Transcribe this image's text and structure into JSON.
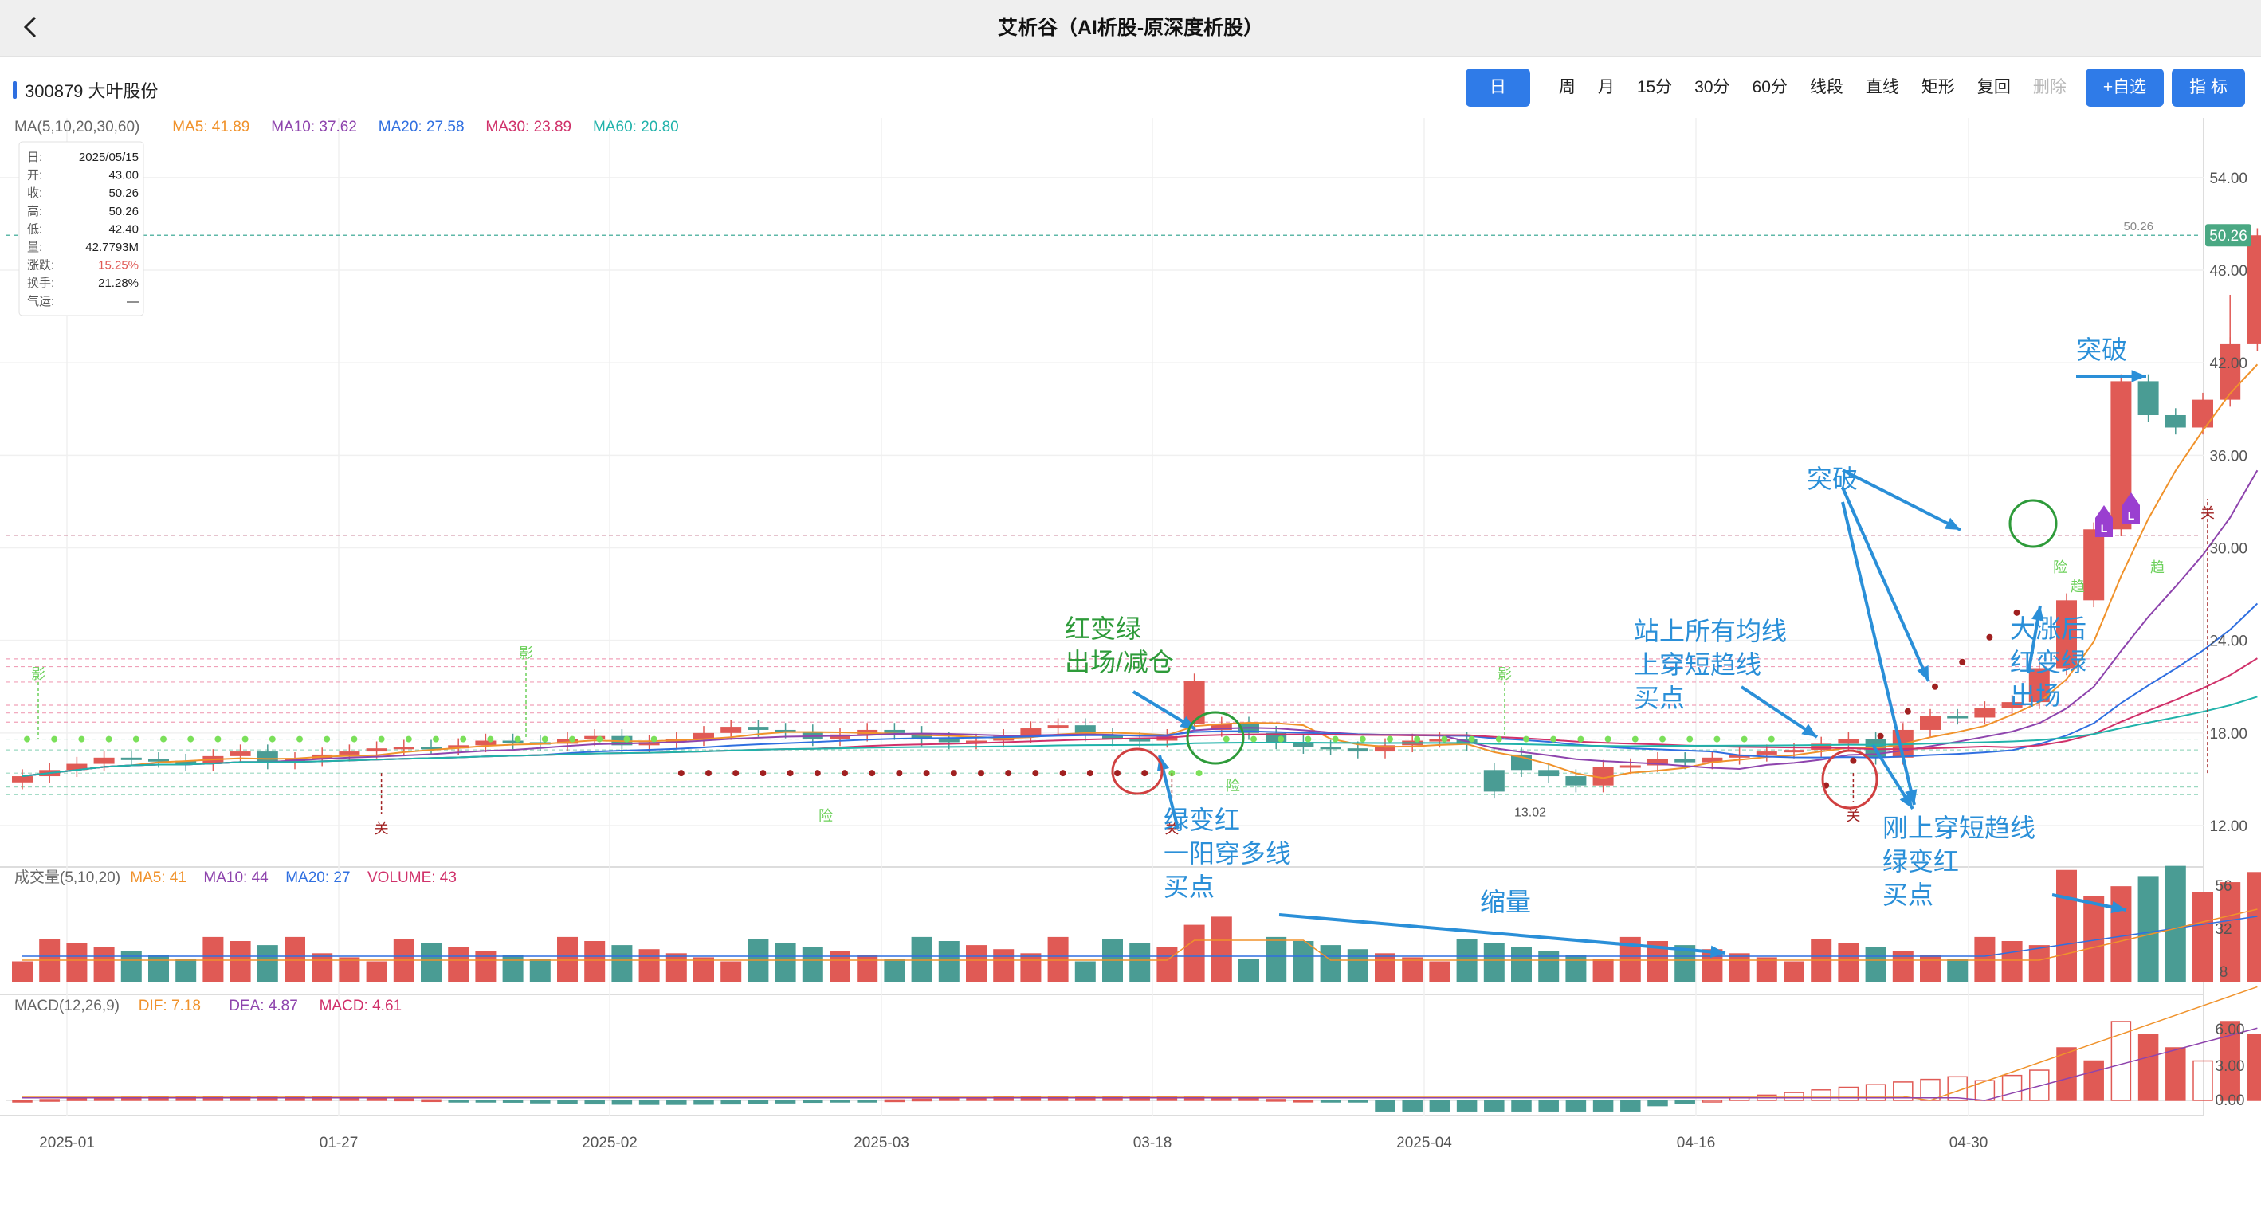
{
  "app": {
    "title": "艾析谷（AI析股-原深度析股）"
  },
  "stock": {
    "label": "300879 大叶股份"
  },
  "toolbar": {
    "items": [
      "日",
      "周",
      "月",
      "15分",
      "30分",
      "60分",
      "线段",
      "直线",
      "矩形",
      "复回",
      "删除"
    ],
    "watch": "+自选",
    "indicator": "指 标"
  },
  "ma_header": [
    {
      "text": "MA(5,10,20,30,60)",
      "color": "#666666"
    },
    {
      "text": "MA5: 41.89",
      "color": "#f0922b"
    },
    {
      "text": "MA10: 37.62",
      "color": "#8e44ad"
    },
    {
      "text": "MA20: 27.58",
      "color": "#2f6fe0"
    },
    {
      "text": "MA30: 23.89",
      "color": "#d0316a"
    },
    {
      "text": "MA60: 20.80",
      "color": "#20b2aa"
    }
  ],
  "info_box": [
    [
      "日:",
      "2025/05/15"
    ],
    [
      "开:",
      "43.00"
    ],
    [
      "收:",
      "50.26"
    ],
    [
      "高:",
      "50.26"
    ],
    [
      "低:",
      "42.40"
    ],
    [
      "量:",
      "42.7793M"
    ],
    [
      "涨跌:",
      "15.25%"
    ],
    [
      "换手:",
      "21.28%"
    ],
    [
      "气运:",
      "—"
    ]
  ],
  "price_axis": [
    "54.00",
    "48.00",
    "42.00",
    "36.00",
    "30.00",
    "24.00",
    "18.00",
    "12.00"
  ],
  "price_tag": "50.26",
  "price_tag_small": "50.26",
  "low_label": "13.02",
  "vol_header": [
    {
      "text": "成交量(5,10,20)",
      "color": "#666666"
    },
    {
      "text": "MA5: 41",
      "color": "#f0922b"
    },
    {
      "text": "MA10: 44",
      "color": "#8e44ad"
    },
    {
      "text": "MA20: 27",
      "color": "#2f6fe0"
    },
    {
      "text": "VOLUME: 43",
      "color": "#d0316a"
    }
  ],
  "vol_axis": [
    "56",
    "32",
    "8"
  ],
  "macd_header": [
    {
      "text": "MACD(12,26,9)",
      "color": "#666666"
    },
    {
      "text": "DIF: 7.18",
      "color": "#f0922b"
    },
    {
      "text": "DEA: 4.87",
      "color": "#8e44ad"
    },
    {
      "text": "MACD: 4.61",
      "color": "#d0316a"
    }
  ],
  "macd_axis": [
    "6.00",
    "3.00",
    "0.00"
  ],
  "dates": [
    "2025-01",
    "01-27",
    "2025-02",
    "2025-03",
    "03-18",
    "2025-04",
    "04-16",
    "04-30"
  ],
  "signals": {
    "guan": "关",
    "xian": "险",
    "ying": "影",
    "qu": "趋",
    "L": "L"
  },
  "annotations": {
    "a1": [
      "红变绿",
      "出场/减仓"
    ],
    "a2": [
      "绿变红",
      "一阳穿多线",
      "买点"
    ],
    "a3": [
      "站上所有均线",
      "上穿短趋线",
      "买点"
    ],
    "a4": [
      "突破"
    ],
    "a5": [
      "刚上穿短趋线",
      "绿变红",
      "买点"
    ],
    "a6": [
      "大涨后",
      "红变绿",
      "出场"
    ],
    "a7": [
      "突破"
    ],
    "a8": [
      "缩量"
    ]
  },
  "colors": {
    "up": "#e05a55",
    "down": "#4a9c94",
    "annot": "#2a8fd8",
    "green_annot": "#2e9b3a",
    "axis": "#555555"
  }
}
